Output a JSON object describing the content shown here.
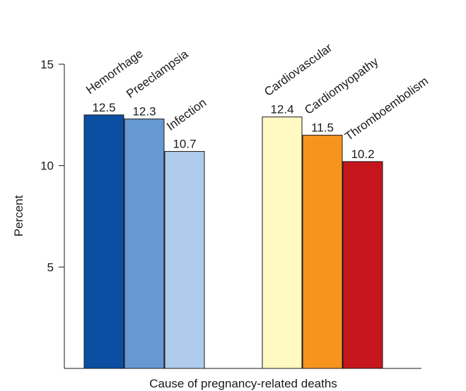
{
  "chart_data": {
    "type": "bar",
    "title": "",
    "xlabel": "Cause of pregnancy-related deaths",
    "ylabel": "Percent",
    "ylim": [
      0,
      15
    ],
    "yticks": [
      5,
      10,
      15
    ],
    "grid": false,
    "bars": [
      {
        "category": "Hemorrhage",
        "value": 12.5,
        "label": "12.5",
        "color": "#0b4ea2",
        "group": 1
      },
      {
        "category": "Preeclampsia",
        "value": 12.3,
        "label": "12.3",
        "color": "#6699d3",
        "group": 1
      },
      {
        "category": "Infection",
        "value": 10.7,
        "label": "10.7",
        "color": "#aecbeb",
        "group": 1
      },
      {
        "category": "Cardiovascular",
        "value": 12.4,
        "label": "12.4",
        "color": "#fff9c2",
        "group": 2
      },
      {
        "category": "Cardiomyopathy",
        "value": 11.5,
        "label": "11.5",
        "color": "#f7941e",
        "group": 2
      },
      {
        "category": "Thromboembolism",
        "value": 10.2,
        "label": "10.2",
        "color": "#c4161c",
        "group": 2
      }
    ]
  }
}
